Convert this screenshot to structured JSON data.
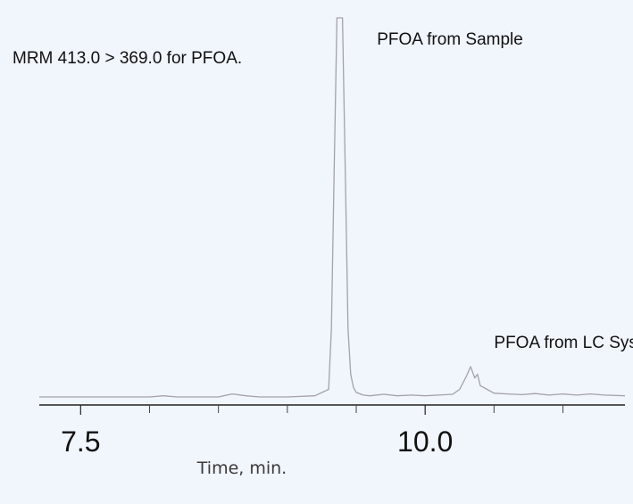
{
  "chart_data": {
    "type": "line",
    "title": "",
    "xlabel": "Time, min.",
    "ylabel": "",
    "xlim": [
      7.2,
      11.45
    ],
    "ylim": [
      0,
      100
    ],
    "x_major_ticks": [
      7.5,
      10.0
    ],
    "x_major_tick_labels": [
      "7.5",
      "10.0"
    ],
    "x_minor_ticks": [
      8.0,
      8.5,
      9.0,
      9.5,
      10.5,
      11.0
    ],
    "annotations": [
      {
        "text": "MRM 413.0 > 369.0 for PFOA.",
        "x": 7.55,
        "y": 88
      },
      {
        "text": "PFOA from Sample",
        "x": 9.65,
        "y": 93
      },
      {
        "text": "PFOA from LC System",
        "x": 10.5,
        "y": 13
      }
    ],
    "series": [
      {
        "color": "#a3a3a8",
        "x": [
          7.2,
          7.5,
          8.0,
          8.1,
          8.2,
          8.5,
          8.6,
          8.7,
          8.8,
          9.0,
          9.2,
          9.3,
          9.32,
          9.34,
          9.36,
          9.38,
          9.4,
          9.42,
          9.44,
          9.46,
          9.48,
          9.5,
          9.55,
          9.6,
          9.7,
          9.8,
          9.9,
          10.0,
          10.1,
          10.2,
          10.25,
          10.3,
          10.33,
          10.36,
          10.38,
          10.4,
          10.45,
          10.5,
          10.6,
          10.7,
          10.8,
          10.9,
          11.0,
          11.1,
          11.2,
          11.3,
          11.45
        ],
        "y": [
          0,
          0,
          0,
          0.3,
          0,
          0,
          0.8,
          0.3,
          0,
          0,
          0.3,
          2,
          18,
          60,
          100,
          100,
          100,
          60,
          18,
          6,
          2.5,
          1.2,
          0.5,
          0.3,
          0.7,
          0.3,
          0.5,
          0.3,
          0.5,
          0.7,
          2,
          5.5,
          8,
          5,
          6,
          3,
          2,
          1,
          0.8,
          0.6,
          0.9,
          0.5,
          0.8,
          0.5,
          0.8,
          0.5,
          0.3
        ]
      }
    ]
  }
}
